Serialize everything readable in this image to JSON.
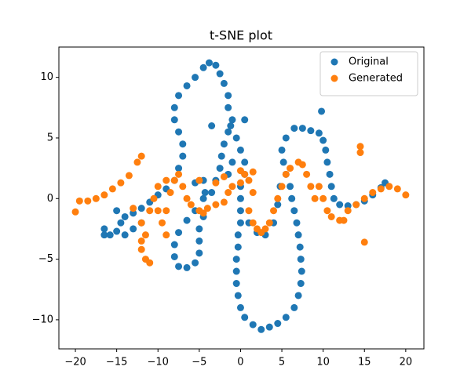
{
  "chart_data": {
    "type": "scatter",
    "title": "t-SNE plot",
    "xlim": [
      -22.0,
      22.2
    ],
    "ylim": [
      -12.4,
      12.5
    ],
    "xticks": [
      {
        "value": -20,
        "label": "−20"
      },
      {
        "value": -15,
        "label": "−15"
      },
      {
        "value": -10,
        "label": "−10"
      },
      {
        "value": -5,
        "label": "−5"
      },
      0,
      5,
      10,
      15,
      20
    ],
    "yticks": [
      {
        "value": -10,
        "label": "−10"
      },
      {
        "value": -5,
        "label": "−5"
      },
      0,
      5,
      10
    ],
    "grid": false,
    "legend": "upper-right",
    "series": [
      {
        "name": "Original",
        "color": "#1f77b4",
        "x": [
          -16.5,
          -16.5,
          -15.8,
          -15,
          -14.5,
          -14,
          -13,
          -12,
          -11,
          -10,
          -9,
          -8,
          -7.5,
          -7,
          -7,
          -7.5,
          -8,
          -8,
          -7.5,
          -6.5,
          -5.5,
          -4.5,
          -3.8,
          -3,
          -2.5,
          -2,
          -1.5,
          -1.5,
          -1,
          -1.5,
          -2,
          -2.3,
          -2.5,
          -3,
          -3.5,
          -4.5,
          -5.5,
          -6.5,
          -7.5,
          -8,
          -8,
          -7.5,
          -6.5,
          -5.5,
          -5,
          -5,
          -5,
          -4.5,
          -4.3,
          -4.5,
          -5.5,
          -0.5,
          0,
          0.5,
          0.5,
          0,
          0,
          0,
          0,
          -0.3,
          -0.3,
          -0.5,
          -0.5,
          -0.5,
          -0.3,
          0,
          0.5,
          1.5,
          2.5,
          3.5,
          4.5,
          5.5,
          6.5,
          7,
          7.3,
          7.4,
          7.3,
          7.2,
          7,
          6.8,
          6.5,
          6.2,
          6,
          5.5,
          5.2,
          5,
          5.5,
          6.5,
          7.5,
          8.5,
          9.5,
          10,
          10.3,
          10.5,
          10.8,
          11,
          11.3,
          12,
          13,
          14,
          15,
          16,
          17,
          17.5,
          1,
          2,
          3,
          4,
          4.5,
          4.8,
          -1,
          -1.5,
          -1.2,
          0.5,
          -14,
          -15,
          -13,
          -12,
          9.8,
          -3.5
        ],
        "values": [
          -2.5,
          -3,
          -3,
          -2.7,
          -2,
          -1.5,
          -1.2,
          -0.8,
          -0.3,
          0.3,
          0.8,
          1.5,
          2.5,
          3.5,
          4.5,
          5.5,
          6.5,
          7.5,
          8.5,
          9.3,
          10,
          10.8,
          11.2,
          11,
          10.3,
          9.5,
          8.5,
          7.5,
          6.5,
          5.5,
          4.5,
          3.5,
          2.5,
          1.5,
          0.5,
          0,
          -1,
          -1.8,
          -2.8,
          -3.8,
          -4.8,
          -5.6,
          -5.7,
          -5.3,
          -4.5,
          -3.5,
          -2.5,
          -1.5,
          0.5,
          1.5,
          1.3,
          5,
          4,
          3,
          2,
          1,
          0,
          -1,
          -2,
          -3,
          -4,
          -5,
          -6,
          -7,
          -8,
          -9,
          -9.8,
          -10.4,
          -10.8,
          -10.6,
          -10.3,
          -9.8,
          -9,
          -8,
          -7,
          -6,
          -5,
          -4,
          -3,
          -2,
          -1,
          0,
          1,
          2,
          3,
          4,
          5,
          5.8,
          5.8,
          5.6,
          5.4,
          4.8,
          4,
          3,
          2,
          1,
          0,
          -0.5,
          -0.6,
          -0.5,
          -0.2,
          0.3,
          0.9,
          1.3,
          -2,
          -2.8,
          -3,
          -2,
          -0.5,
          1,
          3,
          2,
          6,
          6.5,
          -3,
          -1,
          -2.5,
          -2,
          7.2,
          6
        ]
      },
      {
        "name": "Generated",
        "color": "#ff7f0e",
        "x": [
          -20,
          -19.5,
          -18.5,
          -17.5,
          -16.5,
          -15.5,
          -14.5,
          -13.5,
          -12.5,
          -12,
          -12,
          -11.5,
          -11,
          -11.5,
          -12,
          -11,
          -10.5,
          -10,
          -9,
          -10,
          -9.5,
          -9,
          -8.5,
          -8,
          -7.5,
          -7,
          -6.5,
          -6,
          -5,
          -4.5,
          -4,
          -3,
          -2,
          -1.5,
          -1,
          0,
          0.5,
          1,
          1.5,
          1,
          1.5,
          2,
          2.5,
          3,
          3.5,
          4,
          4.5,
          5,
          5.5,
          6,
          7,
          7.5,
          8,
          8.5,
          9,
          9.5,
          10,
          10.5,
          11,
          12,
          12.5,
          13,
          14,
          15,
          16,
          17,
          18,
          19,
          20,
          14.5,
          14.5,
          15,
          -5,
          -3,
          -2,
          0,
          1.5,
          -12,
          -13,
          -9
        ],
        "values": [
          -1.1,
          -0.2,
          -0.2,
          0,
          0.3,
          0.8,
          1.3,
          1.9,
          3,
          3.5,
          -4.2,
          -5,
          -5.3,
          -3,
          -2,
          -1,
          0,
          1,
          1.5,
          -1,
          -2,
          -1,
          0.5,
          1.5,
          2,
          1,
          0,
          -0.5,
          -1,
          -1.2,
          -0.8,
          -0.5,
          -0.3,
          0.5,
          1,
          1.3,
          2,
          1.5,
          0.5,
          -1,
          -2,
          -2.5,
          -2.8,
          -2.5,
          -2,
          -1,
          0,
          1,
          2,
          2.5,
          3,
          2.8,
          2,
          1,
          0,
          1,
          0,
          -1,
          -1.5,
          -1.8,
          -1.8,
          -1,
          -0.5,
          0,
          0.5,
          0.8,
          1,
          0.8,
          0.3,
          4.3,
          3.8,
          -3.6,
          1.5,
          1.3,
          1.8,
          2.3,
          2.2,
          -3.5,
          -0.8,
          -3
        ]
      }
    ]
  }
}
